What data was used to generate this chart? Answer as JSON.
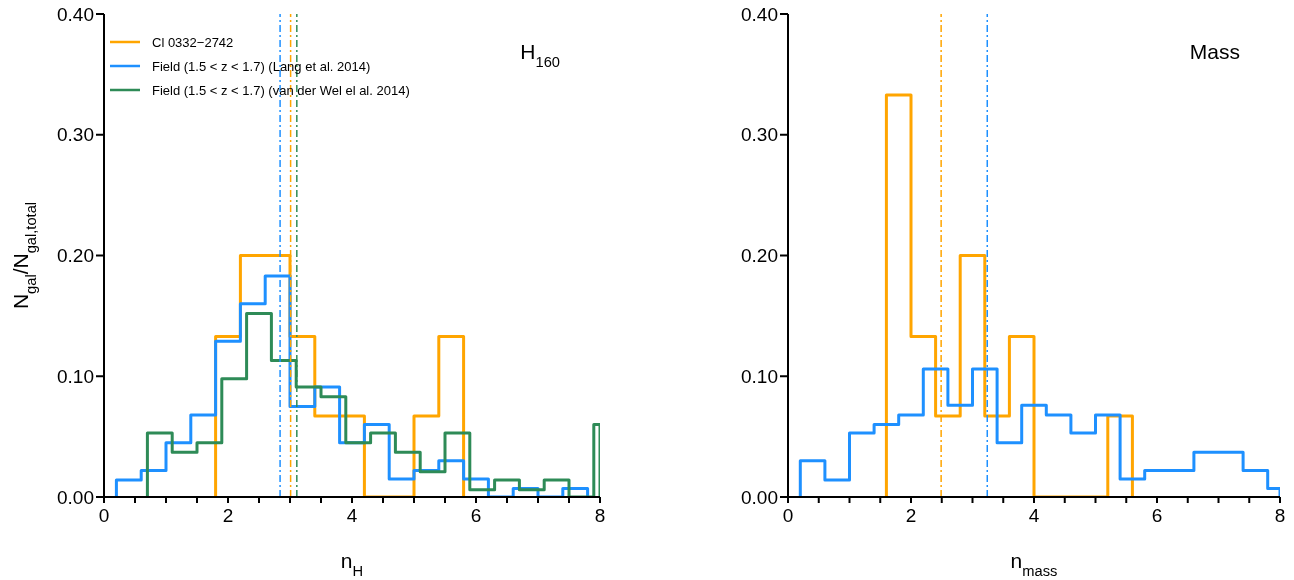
{
  "chart_data": [
    {
      "type": "histogram",
      "xlabel": "n$_{H}$",
      "ylabel": "N$_{gal}$/N$_{gal,total}$",
      "annotations": [
        "H$_{160}$"
      ],
      "xlim": [
        0,
        8
      ],
      "ylim": [
        0,
        0.4
      ],
      "xticks": [
        0,
        {
          "value": 0.5,
          "label": null
        },
        {
          "value": 1,
          "label": null
        },
        {
          "value": 1.5,
          "label": null
        },
        2,
        {
          "value": 2.5,
          "label": null
        },
        {
          "value": 3,
          "label": null
        },
        {
          "value": 3.5,
          "label": null
        },
        4,
        {
          "value": 4.5,
          "label": null
        },
        {
          "value": 5,
          "label": null
        },
        {
          "value": 5.5,
          "label": null
        },
        6,
        {
          "value": 6.5,
          "label": null
        },
        {
          "value": 7,
          "label": null
        },
        {
          "value": 7.5,
          "label": null
        },
        8
      ],
      "yticks": [
        {
          "value": 0,
          "label": "0.00"
        },
        {
          "value": 0.1,
          "label": "0.10"
        },
        {
          "value": 0.2,
          "label": "0.20"
        },
        {
          "value": 0.3,
          "label": "0.30"
        },
        {
          "value": 0.4,
          "label": "0.40"
        }
      ],
      "legend": "top left",
      "grid": false,
      "bins": [
        0.2,
        0.6,
        1.0,
        1.4,
        1.8,
        2.2,
        2.6,
        3.0,
        3.4,
        3.8,
        4.2,
        4.6,
        5.0,
        5.4,
        5.8,
        6.2,
        6.6,
        7.0,
        7.4,
        7.8
      ],
      "series": [
        {
          "name": "Cl 0332−2742",
          "color": "#ffa500",
          "bins": [
            1.8,
            2.2,
            2.6,
            3.0,
            3.4,
            3.8,
            4.2,
            4.6,
            5.0,
            5.4,
            5.8
          ],
          "values": [
            0.133,
            0.2,
            0.2,
            0.133,
            0.067,
            0.067,
            0,
            0,
            0.067,
            0.133
          ]
        },
        {
          "name": "Field (1.5 < z < 1.7) (Lang et al. 2014)",
          "color": "#1e90ff",
          "values": [
            0.014,
            0.022,
            0.045,
            0.068,
            0.129,
            0.16,
            0.183,
            0.075,
            0.091,
            0.045,
            0.06,
            0.015,
            0.022,
            0.03,
            0.015,
            0,
            0.007,
            0,
            0.007
          ]
        },
        {
          "name": "Field (1.5 < z < 1.7) (van der Wel el al. 2014)",
          "color": "#2e8b57",
          "bins": [
            0.7,
            1.1,
            1.5,
            1.9,
            2.3,
            2.7,
            3.1,
            3.5,
            3.9,
            4.3,
            4.7,
            5.1,
            5.5,
            5.9,
            6.3,
            6.7,
            7.1,
            7.5,
            7.9,
            8.0
          ],
          "values": [
            0.053,
            0.037,
            0.045,
            0.098,
            0.152,
            0.113,
            0.091,
            0.083,
            0.045,
            0.053,
            0.037,
            0.021,
            0.053,
            0.006,
            0.014,
            0.006,
            0.014,
            0,
            0.06
          ]
        }
      ],
      "ref_lines": [
        {
          "axis": "x",
          "value": 2.84,
          "color": "#1e90ff",
          "line_style": "dashed"
        },
        {
          "axis": "x",
          "value": 3.01,
          "color": "#ffa500",
          "line_style": "dashed"
        },
        {
          "axis": "x",
          "value": 3.11,
          "color": "#2e8b57",
          "line_style": "dashed"
        }
      ]
    },
    {
      "type": "histogram",
      "xlabel": "n$_{mass}$",
      "annotations": [
        "Mass"
      ],
      "xlim": [
        0,
        8
      ],
      "ylim": [
        0,
        0.4
      ],
      "xticks": [
        0,
        {
          "value": 0.5,
          "label": null
        },
        {
          "value": 1,
          "label": null
        },
        {
          "value": 1.5,
          "label": null
        },
        2,
        {
          "value": 2.5,
          "label": null
        },
        {
          "value": 3,
          "label": null
        },
        {
          "value": 3.5,
          "label": null
        },
        4,
        {
          "value": 4.5,
          "label": null
        },
        {
          "value": 5,
          "label": null
        },
        {
          "value": 5.5,
          "label": null
        },
        6,
        {
          "value": 6.5,
          "label": null
        },
        {
          "value": 7,
          "label": null
        },
        {
          "value": 7.5,
          "label": null
        },
        8
      ],
      "yticks": [
        {
          "value": 0,
          "label": "0.00"
        },
        {
          "value": 0.1,
          "label": "0.10"
        },
        {
          "value": 0.2,
          "label": "0.20"
        },
        {
          "value": 0.3,
          "label": "0.30"
        },
        {
          "value": 0.4,
          "label": "0.40"
        }
      ],
      "grid": false,
      "bins": [
        0.2,
        0.6,
        1.0,
        1.4,
        1.8,
        2.2,
        2.6,
        3.0,
        3.4,
        3.8,
        4.2,
        4.6,
        5.0,
        5.4,
        5.8,
        6.2,
        6.6,
        7.0,
        7.4,
        7.8,
        8.0
      ],
      "series": [
        {
          "color": "#ffa500",
          "bins": [
            1.6,
            2.0,
            2.4,
            2.8,
            3.2,
            3.6,
            4.0,
            4.4,
            4.8,
            5.2,
            5.6
          ],
          "values": [
            0.333,
            0.133,
            0.067,
            0.2,
            0.067,
            0.133,
            0,
            0,
            0,
            0.067
          ]
        },
        {
          "color": "#1e90ff",
          "values": [
            0.03,
            0.014,
            0.053,
            0.06,
            0.068,
            0.106,
            0.076,
            0.106,
            0.045,
            0.076,
            0.068,
            0.053,
            0.068,
            0.015,
            0.022,
            0.022,
            0.037,
            0.037,
            0.022,
            0.007
          ]
        }
      ],
      "ref_lines": [
        {
          "axis": "x",
          "value": 2.49,
          "color": "#ffa500",
          "line_style": "dashed"
        },
        {
          "axis": "x",
          "value": 3.24,
          "color": "#1e90ff",
          "line_style": "dashed"
        }
      ]
    }
  ]
}
